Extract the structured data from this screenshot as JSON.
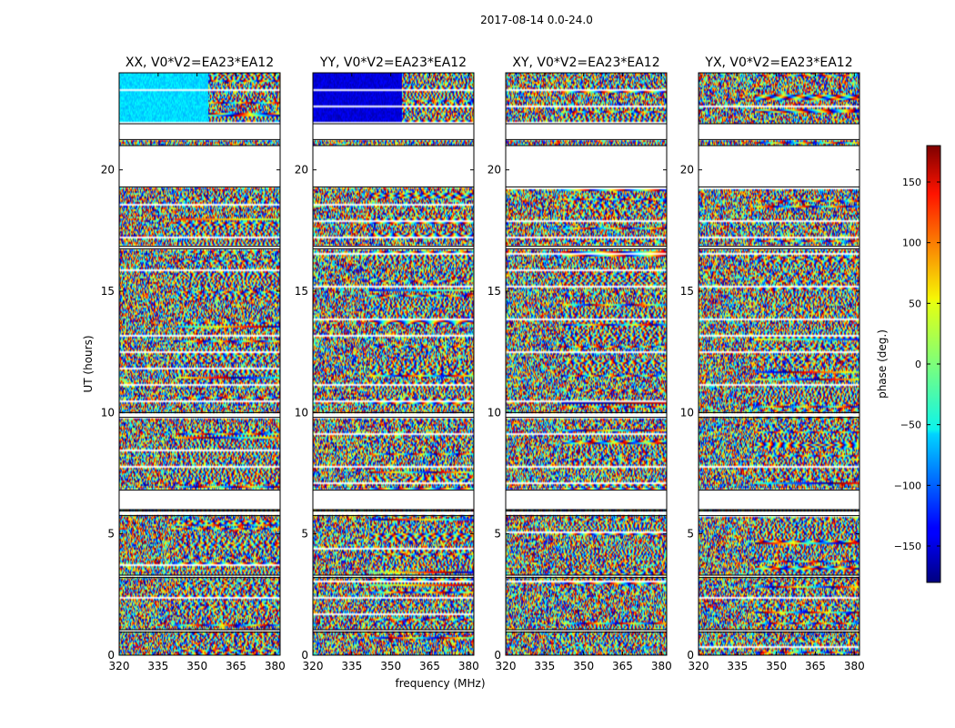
{
  "figure": {
    "suptitle": "2017-08-14 0.0-24.0"
  },
  "chart_data": {
    "type": "heatmap",
    "xlabel": "frequency (MHz)",
    "ylabel": "UT (hours)",
    "xlim": [
      320,
      382
    ],
    "ylim": [
      0,
      24
    ],
    "xticks": [
      "320",
      "335",
      "350",
      "365",
      "380"
    ],
    "xtick_values": [
      320,
      335,
      350,
      365,
      380
    ],
    "yticks": [
      "0",
      "5",
      "10",
      "15",
      "20"
    ],
    "ytick_values": [
      0,
      5,
      10,
      15,
      20
    ],
    "panels": [
      {
        "title": "XX, V0*V2=EA23*EA12",
        "pol": "XX"
      },
      {
        "title": "YY, V0*V2=EA23*EA12",
        "pol": "YY"
      },
      {
        "title": "XY, V0*V2=EA23*EA12",
        "pol": "XY"
      },
      {
        "title": "YX, V0*V2=EA23*EA12",
        "pol": "YX"
      }
    ],
    "colorbar": {
      "label": "phase (deg.)",
      "range": [
        -180,
        180
      ],
      "tick_values": [
        150,
        100,
        50,
        0,
        -50,
        -100,
        -150
      ],
      "tick_labels": [
        "150",
        "100",
        "50",
        "0",
        "−50",
        "−100",
        "−150"
      ],
      "colormap": "jet"
    },
    "gaps_ut_hours": [
      [
        19.3,
        21.0
      ],
      [
        21.25,
        21.9
      ],
      [
        6.0,
        6.8
      ],
      [
        5.75,
        5.95
      ],
      [
        9.8,
        10.0
      ],
      [
        0.95,
        1.05
      ],
      [
        3.2,
        3.3
      ],
      [
        16.75,
        16.85
      ]
    ]
  }
}
